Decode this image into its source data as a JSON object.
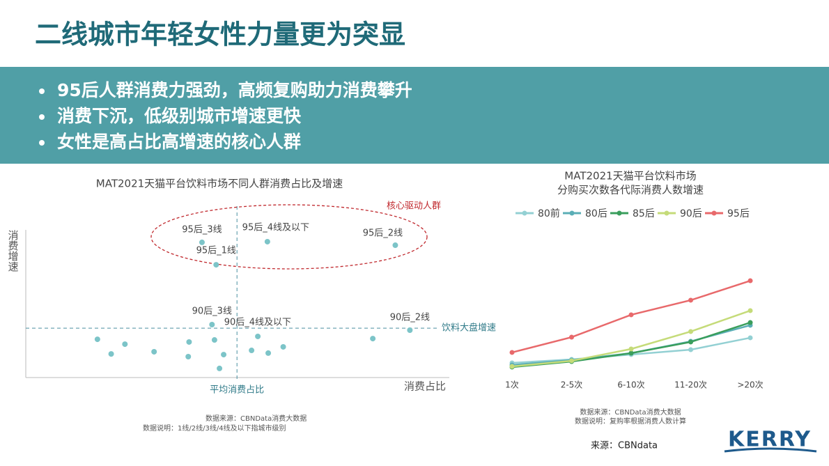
{
  "title": "二线城市年轻女性力量更为突显",
  "bullets": [
    "95后人群消费力强劲，高频复购助力消费攀升",
    "消费下沉，低级别城市增速更快",
    "女性是高占比高增速的核心人群"
  ],
  "source": "来源：CBNdata",
  "logo": "KERRY",
  "chart_data": [
    {
      "type": "scatter",
      "title": "MAT2021天猫平台饮料市场不同人群消费占比及增速",
      "x_label": "消费占比",
      "y_label": "消费增速",
      "color": "#7cc4c8",
      "x": [
        42.3,
        58,
        88.7,
        45.7,
        44.7,
        45.3,
        92.2,
        17.2,
        20.5,
        23.8,
        30.8,
        39.2,
        39,
        47.5,
        46.5,
        54.2,
        55.7,
        58.2,
        61.8,
        83.3
      ],
      "y": [
        80.2,
        80.6,
        78.5,
        66.9,
        31.4,
        22.3,
        28.1,
        22.7,
        14,
        19.8,
        15.3,
        21.1,
        12.4,
        13.6,
        5.4,
        16.1,
        24.4,
        14.5,
        18.2,
        23.1
      ],
      "point_labels": [
        "95后_3线",
        "95后_4线及以下",
        "95后_2线",
        "95后_1线",
        "90后_3线",
        "90后_4线及以下",
        "90后_2线",
        null,
        null,
        null,
        null,
        null,
        null,
        null,
        null,
        null,
        null,
        null,
        null,
        null
      ],
      "xlim": [
        0,
        100
      ],
      "ylim": [
        0,
        100
      ],
      "vline": {
        "value": 50.7,
        "label": "平均消费占比"
      },
      "hline": {
        "value": 29.3,
        "label": "饮料大盘增速"
      },
      "annotation": "核心驱动人群",
      "notes": [
        "数据来源：CBNData消费大数据",
        "数据说明：1线/2线/3线/4线及以下指城市级别"
      ]
    },
    {
      "type": "line",
      "title": "MAT2021天猫平台饮料市场",
      "subtitle": "分购买次数各代际消费人数增速",
      "categories": [
        "1次",
        "2-5次",
        "6-10次",
        "11-20次",
        ">20次"
      ],
      "ylim": [
        0,
        100
      ],
      "series": [
        {
          "name": "80前",
          "color": "#93d0d3",
          "values": [
            12.7,
            16,
            20.7,
            25.3,
            36.7
          ]
        },
        {
          "name": "80后",
          "color": "#5aaeb6",
          "values": [
            10.7,
            15.3,
            22,
            33.3,
            48.7
          ]
        },
        {
          "name": "85后",
          "color": "#3a9e5c",
          "values": [
            8.7,
            14,
            22,
            32.7,
            51.3
          ]
        },
        {
          "name": "90后",
          "color": "#c5db79",
          "values": [
            9.3,
            14.7,
            26,
            42.7,
            62.7
          ]
        },
        {
          "name": "95后",
          "color": "#e8696b",
          "values": [
            22.7,
            37.3,
            58.7,
            72.7,
            91.3
          ]
        }
      ],
      "notes": [
        "数据来源：CBNData消费大数据",
        "数据说明：复购率根据消费人数计算"
      ]
    }
  ]
}
